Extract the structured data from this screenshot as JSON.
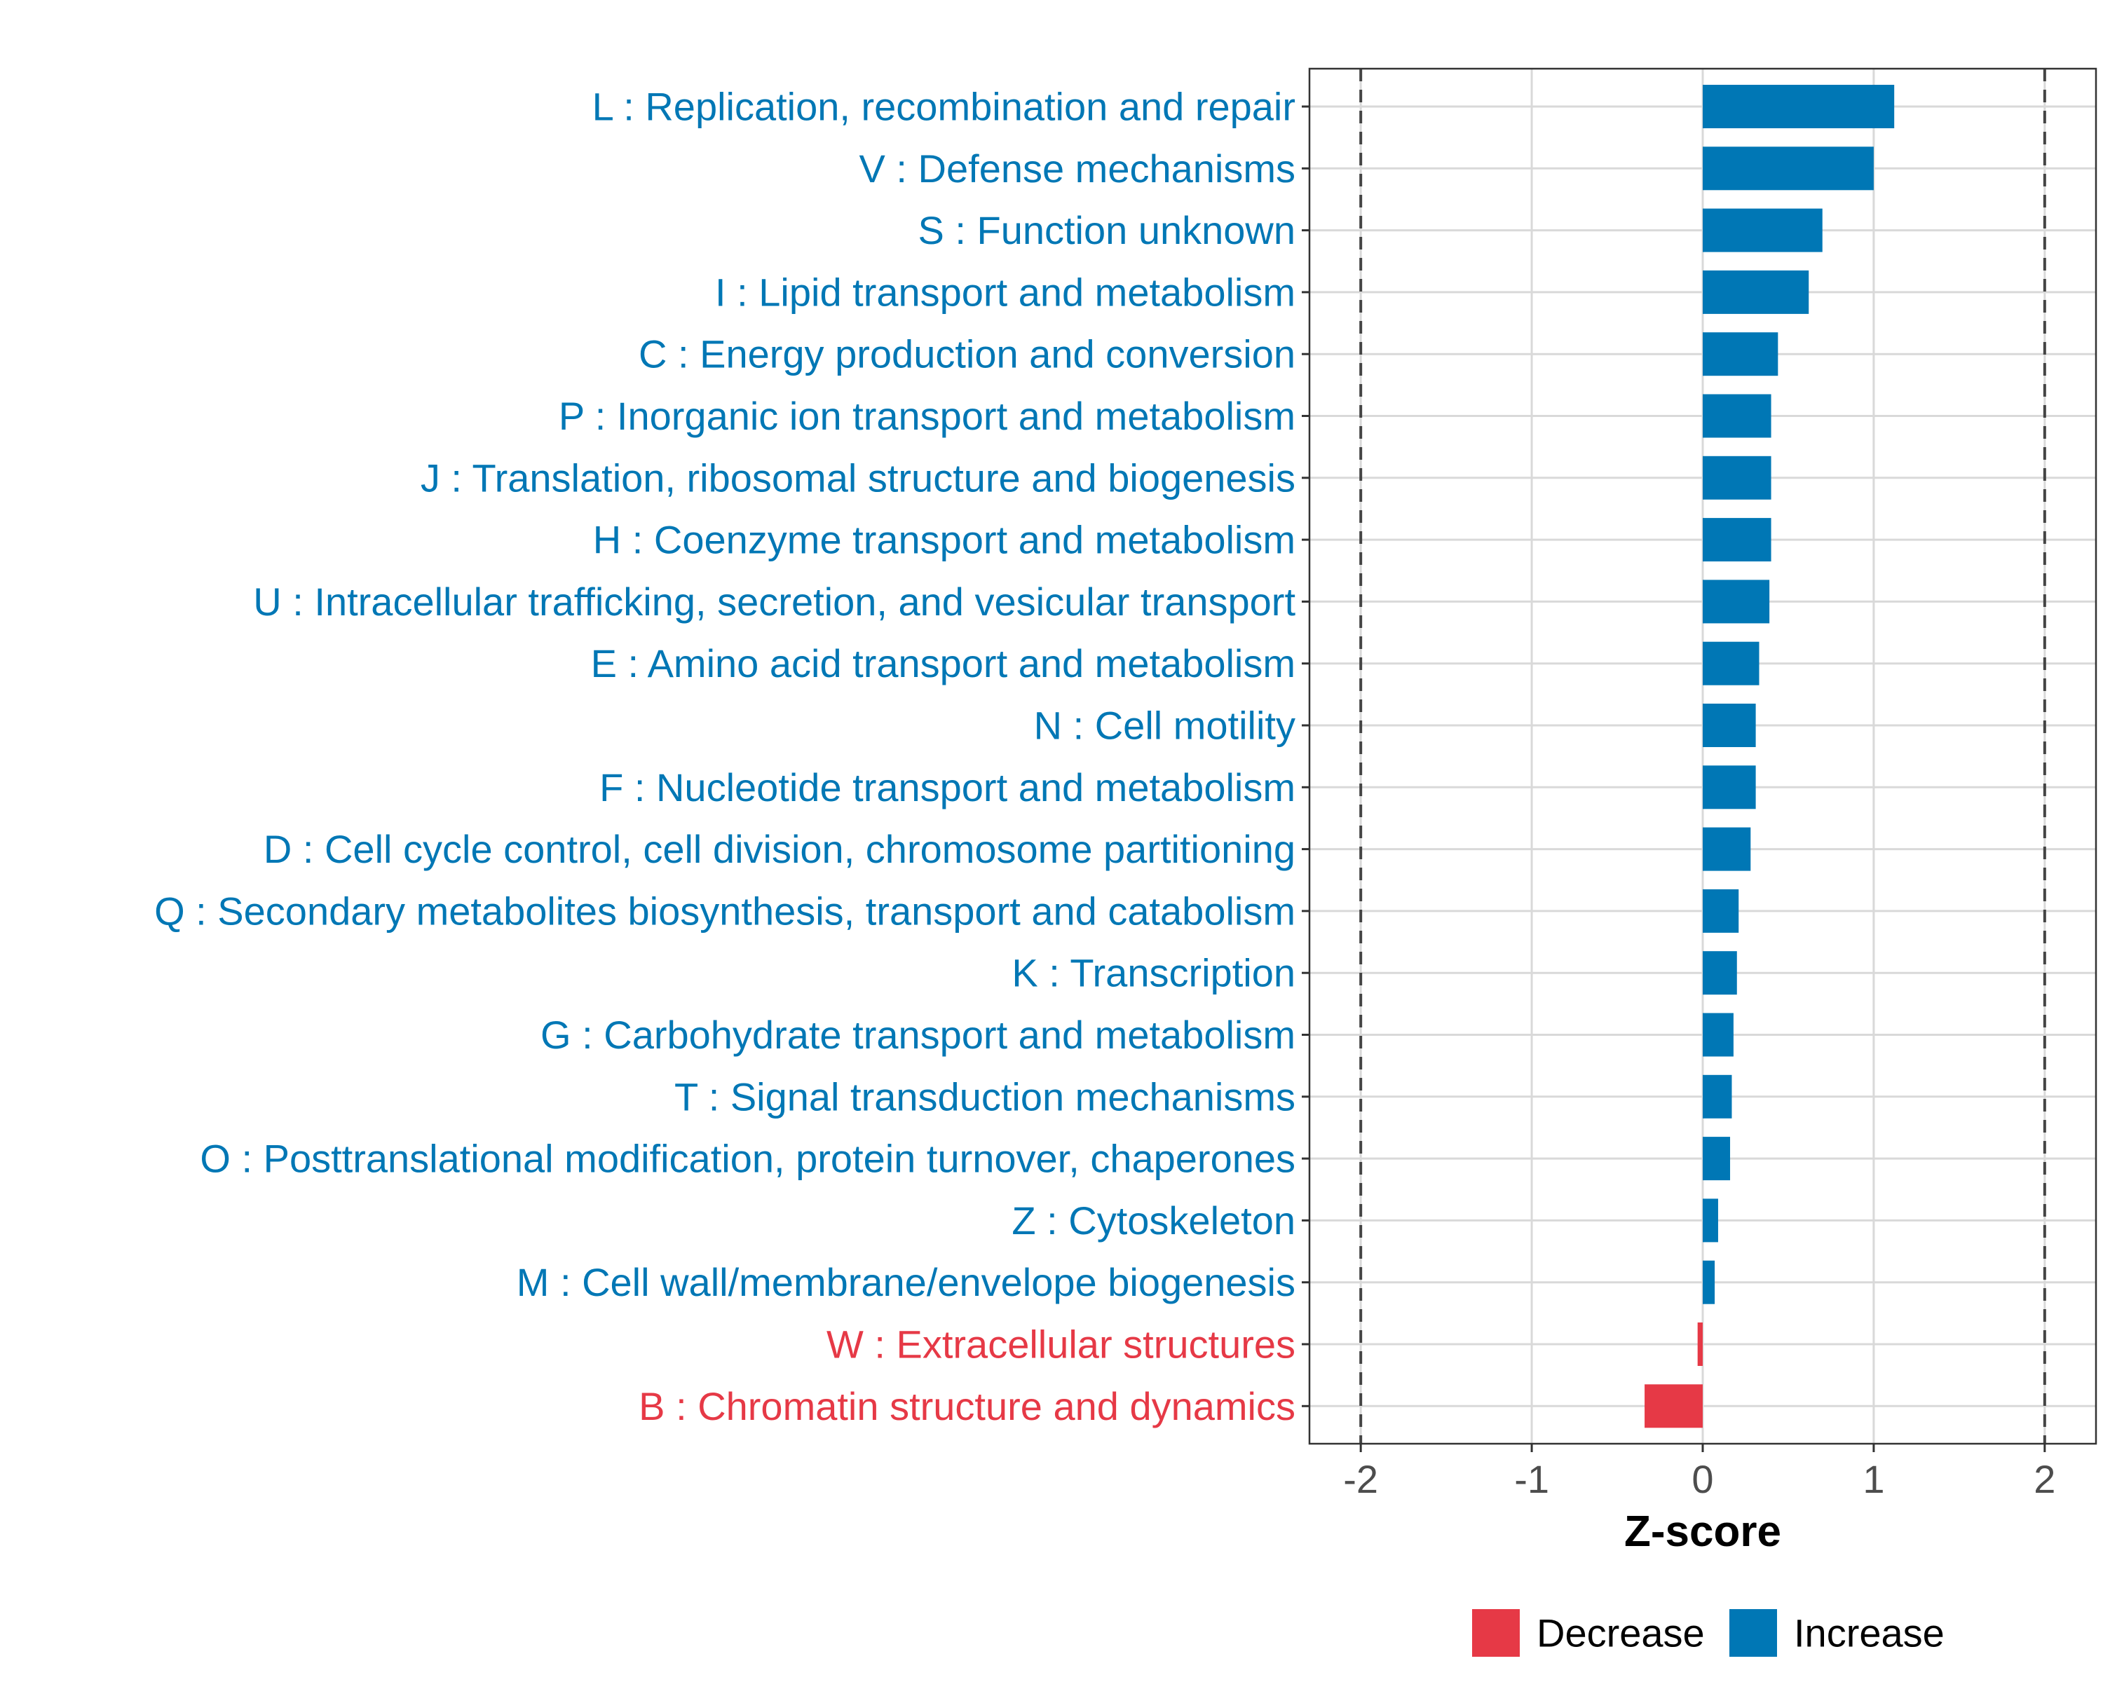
{
  "colors": {
    "increase": "#0077B5",
    "decrease": "#E63946",
    "grid": "#D9D9D9",
    "axis_text": "#4D4D4D",
    "frame": "#333333",
    "threshold": "#444444",
    "title": "#000000"
  },
  "chart_data": {
    "type": "bar",
    "orientation": "horizontal",
    "title": "",
    "xlabel": "Z-score",
    "ylabel": "",
    "xlim": [
      -2.3,
      2.3
    ],
    "xticks": [
      -2,
      -1,
      0,
      1,
      2
    ],
    "x_tick_labels": [
      "-2",
      "-1",
      "0",
      "1",
      "2"
    ],
    "threshold_lines": [
      -2,
      2
    ],
    "grid": true,
    "legend_position": "bottom",
    "categories": [
      "L : Replication, recombination and repair",
      "V : Defense mechanisms",
      "S : Function unknown",
      "I : Lipid transport and metabolism",
      "C : Energy production and conversion",
      "P : Inorganic ion transport and metabolism",
      "J : Translation, ribosomal structure and biogenesis",
      "H : Coenzyme transport and metabolism",
      "U : Intracellular trafficking, secretion, and vesicular transport",
      "E : Amino acid transport and metabolism",
      "N : Cell motility",
      "F : Nucleotide transport and metabolism",
      "D : Cell cycle control, cell division, chromosome partitioning",
      "Q : Secondary metabolites biosynthesis, transport and catabolism",
      "K : Transcription",
      "G : Carbohydrate transport and metabolism",
      "T : Signal transduction mechanisms",
      "O : Posttranslational modification, protein turnover, chaperones",
      "Z : Cytoskeleton",
      "M : Cell wall/membrane/envelope biogenesis",
      "W : Extracellular structures",
      "B : Chromatin structure and dynamics"
    ],
    "values": [
      1.12,
      1.0,
      0.7,
      0.62,
      0.44,
      0.4,
      0.4,
      0.4,
      0.39,
      0.33,
      0.31,
      0.31,
      0.28,
      0.21,
      0.2,
      0.18,
      0.17,
      0.16,
      0.09,
      0.07,
      -0.03,
      -0.34
    ],
    "groups": [
      "Increase",
      "Increase",
      "Increase",
      "Increase",
      "Increase",
      "Increase",
      "Increase",
      "Increase",
      "Increase",
      "Increase",
      "Increase",
      "Increase",
      "Increase",
      "Increase",
      "Increase",
      "Increase",
      "Increase",
      "Increase",
      "Increase",
      "Increase",
      "Decrease",
      "Decrease"
    ],
    "legend": [
      {
        "label": "Decrease",
        "group": "Decrease"
      },
      {
        "label": "Increase",
        "group": "Increase"
      }
    ]
  }
}
